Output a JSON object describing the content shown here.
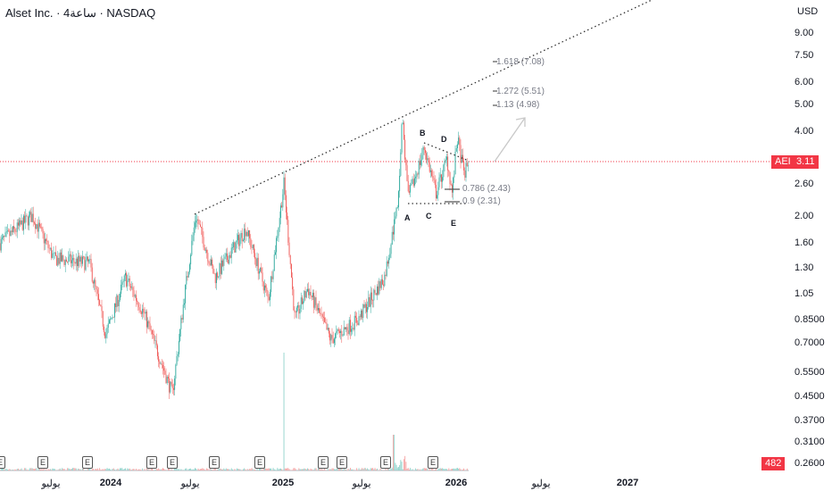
{
  "header": {
    "title": "Alset Inc. · 4ساعة · NASDAQ"
  },
  "price_axis": {
    "currency": "USD",
    "ticks": [
      "9.00",
      "7.50",
      "6.00",
      "5.00",
      "4.00",
      "2.60",
      "2.00",
      "1.60",
      "1.30",
      "1.05",
      "0.8500",
      "0.7000",
      "0.5500",
      "0.4500",
      "0.3700",
      "0.3100",
      "0.2600"
    ],
    "symbol_tag": "AEI",
    "last_price": "3.11",
    "volume_tag": "482"
  },
  "time_axis": {
    "ticks": [
      {
        "label": "يوليو",
        "bold": false
      },
      {
        "label": "2024",
        "bold": true
      },
      {
        "label": "يوليو",
        "bold": false
      },
      {
        "label": "2025",
        "bold": true
      },
      {
        "label": "يوليو",
        "bold": false
      },
      {
        "label": "2026",
        "bold": true
      },
      {
        "label": "يوليو",
        "bold": false
      },
      {
        "label": "2027",
        "bold": true
      }
    ]
  },
  "earnings_marker": "E",
  "drawings": {
    "waves": [
      "A",
      "B",
      "C",
      "D",
      "E"
    ],
    "fib_levels": [
      "1.618 (7.08)",
      "1.272 (5.51)",
      "1.13 (4.98)",
      "0.786 (2.43)",
      "0.9 (2.31)"
    ]
  },
  "colors": {
    "up": "#26a69a",
    "down": "#ef5350",
    "price_line": "#f23645"
  },
  "chart_data": {
    "type": "candlestick",
    "yscale": "log",
    "ylim": [
      0.26,
      9.0
    ],
    "xlim": [
      "2023-05",
      "2027-03"
    ],
    "price_path": [
      [
        "2023-05-10",
        1.6
      ],
      [
        "2023-07-16",
        2.0
      ],
      [
        "2023-09-02",
        1.4
      ],
      [
        "2023-11-16",
        1.35
      ],
      [
        "2023-12-20",
        0.75
      ],
      [
        "2024-01-31",
        1.2
      ],
      [
        "2024-03-09",
        0.9
      ],
      [
        "2024-05-09",
        0.46
      ],
      [
        "2024-06-03",
        1.0
      ],
      [
        "2024-06-28",
        2.0
      ],
      [
        "2024-08-08",
        1.2
      ],
      [
        "2024-10-13",
        1.8
      ],
      [
        "2024-11-30",
        1.0
      ],
      [
        "2025-01-02",
        2.6
      ],
      [
        "2025-01-25",
        0.85
      ],
      [
        "2025-02-22",
        1.1
      ],
      [
        "2025-04-10",
        0.72
      ],
      [
        "2025-06-07",
        0.85
      ],
      [
        "2025-08-02",
        1.2
      ],
      [
        "2025-08-31",
        2.2
      ],
      [
        "2025-09-09",
        4.5
      ],
      [
        "2025-09-22",
        2.3
      ],
      [
        "2025-10-26",
        3.5
      ],
      [
        "2025-11-20",
        2.4
      ],
      [
        "2025-12-13",
        3.2
      ],
      [
        "2025-12-24",
        2.4
      ],
      [
        "2026-01-04",
        3.8
      ],
      [
        "2026-01-19",
        2.8
      ],
      [
        "2026-01-28",
        3.11
      ]
    ]
  }
}
